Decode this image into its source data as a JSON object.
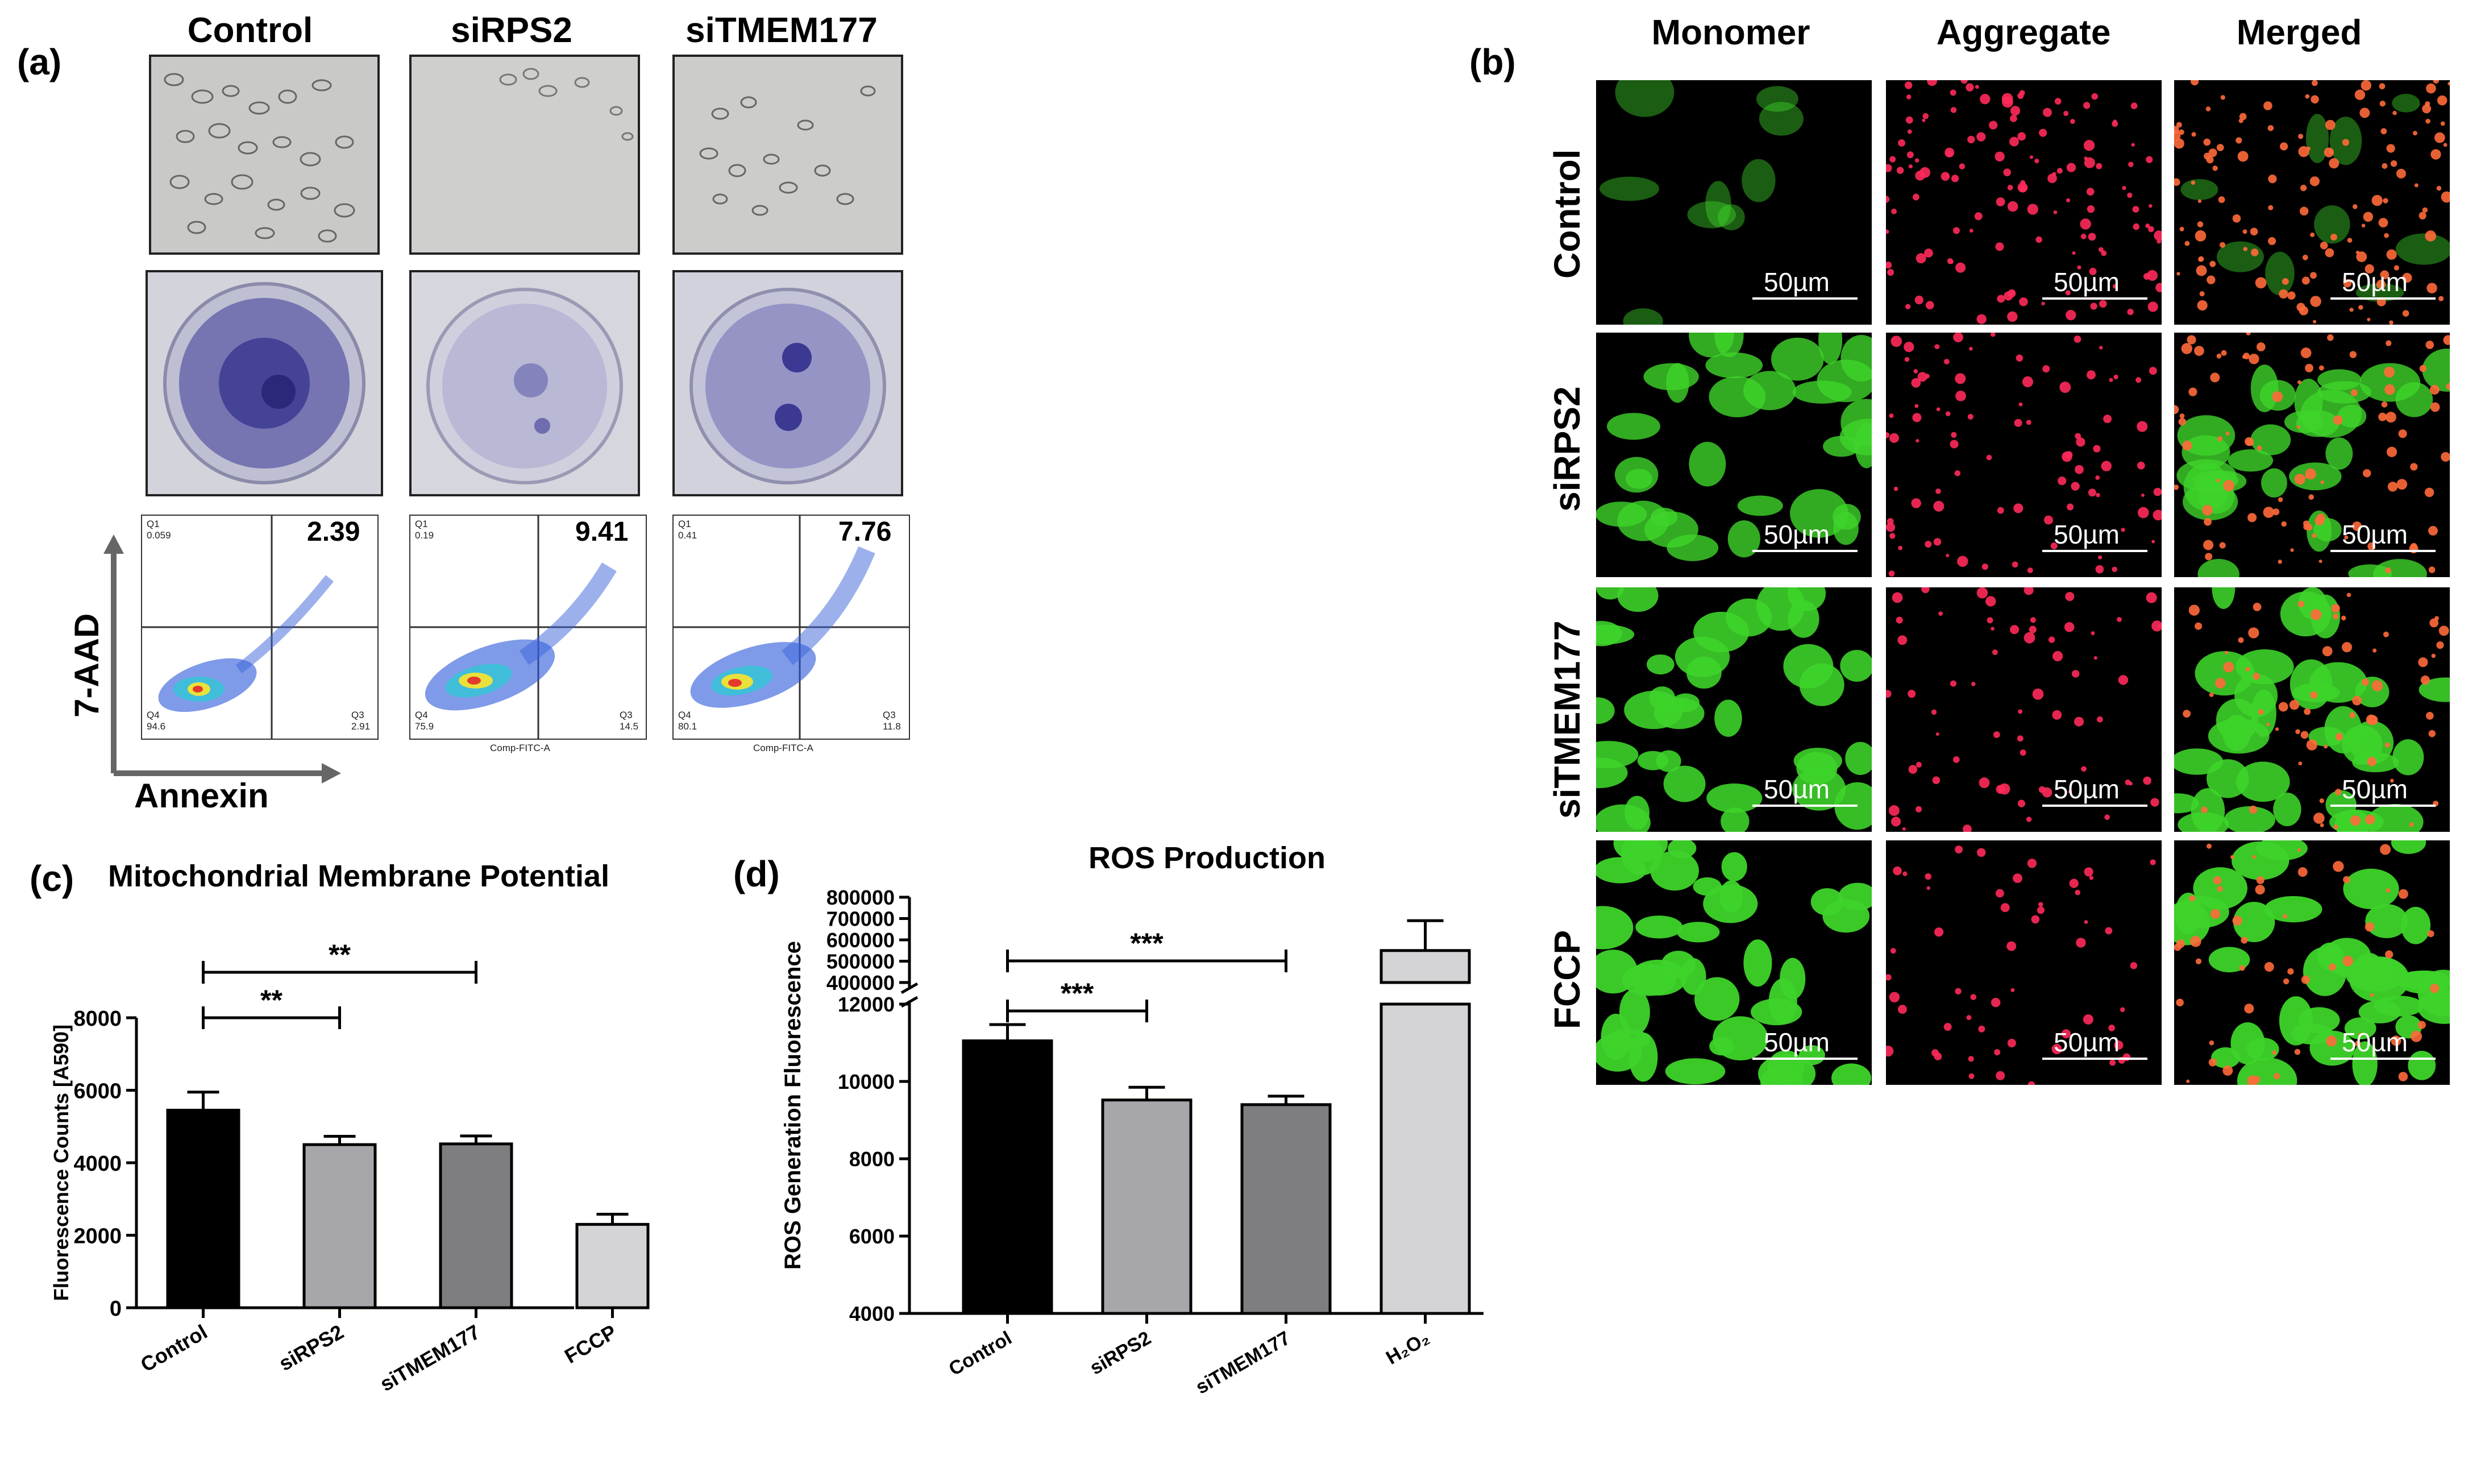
{
  "panel_a": {
    "label": "(a)",
    "columns": [
      "Control",
      "siRPS2",
      "siTMEM177"
    ],
    "flow": {
      "y_axis_label": "7-AAD",
      "x_axis_label": "Annexin",
      "x_channel_label": "Comp-FITC-A",
      "plots": [
        {
          "headline": "2.39",
          "q1": "Q1",
          "q1_val": "0.059",
          "q3": "Q3",
          "q3_val": "2.91",
          "q4": "Q4",
          "q4_val": "94.6"
        },
        {
          "headline": "9.41",
          "q1": "Q1",
          "q1_val": "0.19",
          "q3": "Q3",
          "q3_val": "14.5",
          "q4": "Q4",
          "q4_val": "75.9"
        },
        {
          "headline": "7.76",
          "q1": "Q1",
          "q1_val": "0.41",
          "q3": "Q3",
          "q3_val": "11.8",
          "q4": "Q4",
          "q4_val": "80.1"
        }
      ]
    }
  },
  "panel_b": {
    "label": "(b)",
    "columns": [
      "Monomer",
      "Aggregate",
      "Merged"
    ],
    "rows": [
      "Control",
      "siRPS2",
      "siTMEM177",
      "FCCP"
    ],
    "scale_bar": "50µm"
  },
  "chart_data": [
    {
      "panel": "(c)",
      "type": "bar",
      "title": "Mitochondrial Membrane Potential",
      "ylabel": "Fluorescence Counts [A590]",
      "xlabel": "",
      "categories": [
        "Control",
        "siRPS2",
        "siTMEM177",
        "FCCP"
      ],
      "values": [
        5450,
        4500,
        4520,
        2300
      ],
      "errors": [
        500,
        230,
        220,
        280
      ],
      "ylim": [
        0,
        8000
      ],
      "yticks": [
        "0",
        "2000",
        "4000",
        "6000",
        "8000"
      ],
      "colors": [
        "#000000",
        "#a7a7ab",
        "#7e7e80",
        "#d4d4d6"
      ],
      "significance": [
        {
          "from": "Control",
          "to": "siRPS2",
          "label": "**"
        },
        {
          "from": "Control",
          "to": "siTMEM177",
          "label": "**"
        }
      ]
    },
    {
      "panel": "(d)",
      "type": "bar",
      "title": "ROS Production",
      "ylabel": "ROS Generation Fluorescence",
      "xlabel": "",
      "categories": [
        "Control",
        "siRPS2",
        "siTMEM177",
        "H₂O₂"
      ],
      "values": [
        11050,
        9520,
        9400,
        550000
      ],
      "errors": [
        420,
        330,
        220,
        140000
      ],
      "ylim_lower": [
        4000,
        12000
      ],
      "ylim_upper": [
        400000,
        800000
      ],
      "yticks_lower": [
        "4000",
        "6000",
        "8000",
        "10000",
        "12000"
      ],
      "yticks_upper": [
        "400000",
        "500000",
        "600000",
        "700000",
        "800000"
      ],
      "colors": [
        "#000000",
        "#a7a7ab",
        "#7e7e80",
        "#d4d4d6"
      ],
      "significance": [
        {
          "from": "Control",
          "to": "siRPS2",
          "label": "***"
        },
        {
          "from": "Control",
          "to": "siTMEM177",
          "label": "***"
        }
      ]
    }
  ]
}
